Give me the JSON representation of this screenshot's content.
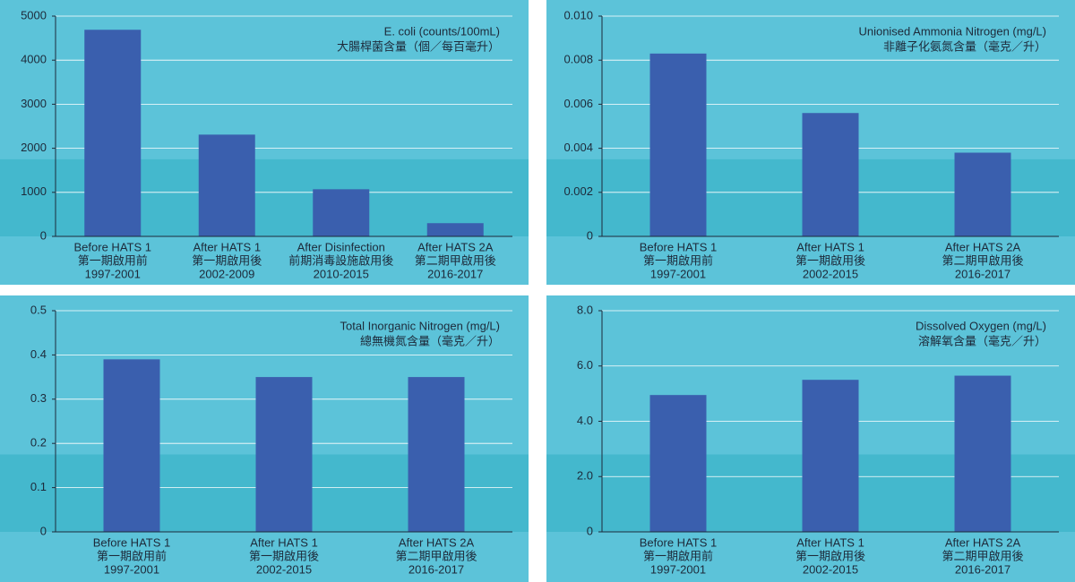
{
  "chart_data": [
    {
      "type": "bar",
      "title": "E. coli (counts/100mL)",
      "subtitle": "大腸桿菌含量（個／每百毫升）",
      "categories": [
        [
          "Before HATS 1",
          "第一期啟用前",
          "1997-2001"
        ],
        [
          "After HATS 1",
          "第一期啟用後",
          "2002-2009"
        ],
        [
          "After Disinfection",
          "前期消毒設施啟用後",
          "2010-2015"
        ],
        [
          "After HATS 2A",
          "第二期甲啟用後",
          "2016-2017"
        ]
      ],
      "values": [
        4690,
        2310,
        1070,
        300
      ],
      "color": "#3a5fae",
      "ylim": [
        0,
        5000
      ],
      "yticks": [
        0,
        1000,
        2000,
        3000,
        4000,
        5000
      ],
      "grid": true
    },
    {
      "type": "bar",
      "title": "Unionised Ammonia Nitrogen (mg/L)",
      "subtitle": "非離子化氨氮含量（毫克／升）",
      "categories": [
        [
          "Before HATS 1",
          "第一期啟用前",
          "1997-2001"
        ],
        [
          "After HATS 1",
          "第一期啟用後",
          "2002-2015"
        ],
        [
          "After HATS 2A",
          "第二期甲啟用後",
          "2016-2017"
        ]
      ],
      "values": [
        0.0083,
        0.0056,
        0.0038
      ],
      "color": "#3a5fae",
      "ylim": [
        0,
        0.01
      ],
      "yticks": [
        0,
        0.002,
        0.004,
        0.006,
        0.008,
        {
          "value": 0.01,
          "label": "0.010"
        }
      ],
      "grid": true
    },
    {
      "type": "bar",
      "title": "Total Inorganic Nitrogen (mg/L)",
      "subtitle": "總無機氮含量（毫克／升）",
      "categories": [
        [
          "Before HATS 1",
          "第一期啟用前",
          "1997-2001"
        ],
        [
          "After HATS 1",
          "第一期啟用後",
          "2002-2015"
        ],
        [
          "After HATS 2A",
          "第二期甲啟用後",
          "2016-2017"
        ]
      ],
      "values": [
        0.39,
        0.35,
        0.35
      ],
      "color": "#3a5fae",
      "ylim": [
        0,
        0.5
      ],
      "yticks": [
        0,
        0.1,
        0.2,
        0.3,
        0.4,
        0.5
      ],
      "grid": true
    },
    {
      "type": "bar",
      "title": "Dissolved Oxygen (mg/L)",
      "subtitle": "溶解氧含量（毫克／升）",
      "categories": [
        [
          "Before HATS 1",
          "第一期啟用前",
          "1997-2001"
        ],
        [
          "After HATS 1",
          "第一期啟用後",
          "2002-2015"
        ],
        [
          "After HATS 2A",
          "第二期甲啟用後",
          "2016-2017"
        ]
      ],
      "values": [
        4.95,
        5.5,
        5.65
      ],
      "color": "#3a5fae",
      "ylim": [
        0,
        8
      ],
      "yticks": [
        0,
        {
          "value": 2,
          "label": "2.0"
        },
        {
          "value": 4,
          "label": "4.0"
        },
        {
          "value": 6,
          "label": "6.0"
        },
        {
          "value": 8,
          "label": "8.0"
        }
      ],
      "grid": true
    }
  ]
}
